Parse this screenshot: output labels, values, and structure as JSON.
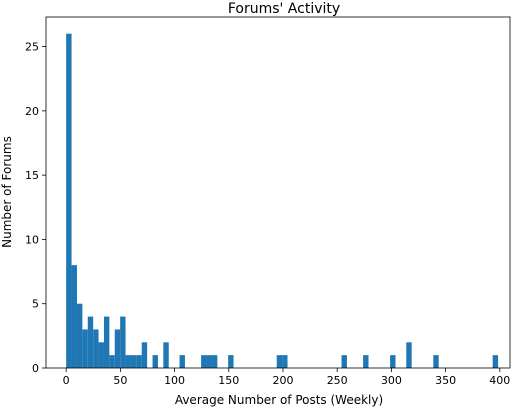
{
  "chart_data": {
    "type": "bar",
    "title": "Forums' Activity",
    "xlabel": "Average Number of Posts (Weekly)",
    "ylabel": "Number of Forums",
    "xlim": [
      -18.6,
      409.4
    ],
    "ylim": [
      0,
      27.3
    ],
    "xticks": [
      0,
      50,
      100,
      150,
      200,
      250,
      300,
      350,
      400
    ],
    "yticks": [
      0,
      5,
      10,
      15,
      20,
      25
    ],
    "bin_width": 4.98,
    "bins": [
      {
        "x": 0,
        "count": 26
      },
      {
        "x": 4.98,
        "count": 8
      },
      {
        "x": 9.96,
        "count": 5
      },
      {
        "x": 14.94,
        "count": 3
      },
      {
        "x": 19.92,
        "count": 4
      },
      {
        "x": 24.9,
        "count": 3
      },
      {
        "x": 29.88,
        "count": 2
      },
      {
        "x": 34.86,
        "count": 4
      },
      {
        "x": 39.84,
        "count": 1
      },
      {
        "x": 44.82,
        "count": 3
      },
      {
        "x": 49.8,
        "count": 4
      },
      {
        "x": 54.78,
        "count": 1
      },
      {
        "x": 59.76,
        "count": 1
      },
      {
        "x": 64.74,
        "count": 1
      },
      {
        "x": 69.72,
        "count": 2
      },
      {
        "x": 79.68,
        "count": 1
      },
      {
        "x": 89.64,
        "count": 2
      },
      {
        "x": 104.58,
        "count": 1
      },
      {
        "x": 124.5,
        "count": 1
      },
      {
        "x": 129.48,
        "count": 1
      },
      {
        "x": 134.46,
        "count": 1
      },
      {
        "x": 149.4,
        "count": 1
      },
      {
        "x": 194.22,
        "count": 1
      },
      {
        "x": 199.2,
        "count": 1
      },
      {
        "x": 254.0,
        "count": 1
      },
      {
        "x": 273.9,
        "count": 1
      },
      {
        "x": 298.8,
        "count": 1
      },
      {
        "x": 313.74,
        "count": 2
      },
      {
        "x": 338.64,
        "count": 1
      },
      {
        "x": 393.42,
        "count": 1
      }
    ],
    "grid": false,
    "bar_color": "#1f77b4"
  }
}
